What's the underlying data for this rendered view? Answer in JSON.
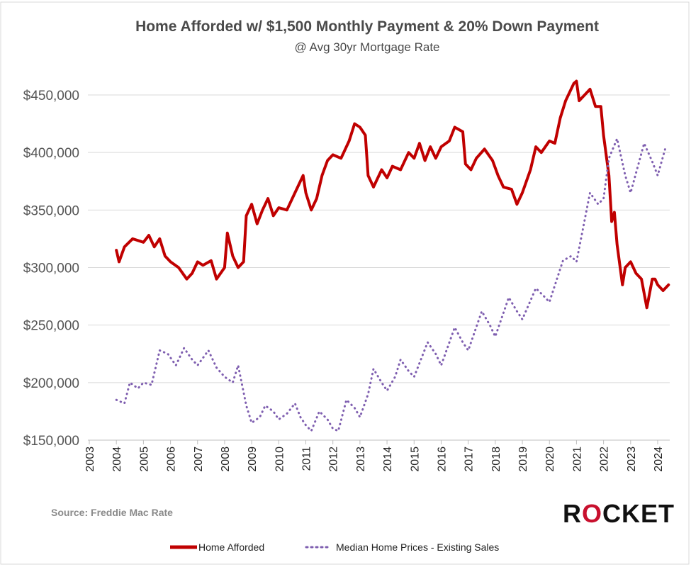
{
  "chart_data": {
    "type": "line",
    "title": "Home Afforded w/ $1,500 Monthly Payment & 20% Down Payment",
    "subtitle": "@ Avg 30yr Mortgage Rate",
    "source": "Source: Freddie Mac Rate",
    "brand": "ROCKET",
    "ylim": [
      150000,
      450000
    ],
    "xlim": [
      2003,
      2024
    ],
    "yticks": [
      150000,
      200000,
      250000,
      300000,
      350000,
      400000,
      450000
    ],
    "ytick_labels": [
      "$150,000",
      "$200,000",
      "$250,000",
      "$300,000",
      "$350,000",
      "$400,000",
      "$450,000"
    ],
    "xtick_labels": [
      "2003",
      "2004",
      "2005",
      "2006",
      "2007",
      "2008",
      "2009",
      "2010",
      "2011",
      "2012",
      "2013",
      "2014",
      "2015",
      "2016",
      "2017",
      "2018",
      "2019",
      "2020",
      "2021",
      "2022",
      "2023",
      "2024"
    ],
    "grid": "horizontal",
    "legend_position": "bottom",
    "series": [
      {
        "name": "Home Afforded",
        "color": "#c00000",
        "style": "solid",
        "x": [
          2004.0,
          2004.1,
          2004.3,
          2004.6,
          2005.0,
          2005.2,
          2005.4,
          2005.6,
          2005.8,
          2006.0,
          2006.3,
          2006.6,
          2006.8,
          2007.0,
          2007.2,
          2007.5,
          2007.7,
          2008.0,
          2008.1,
          2008.3,
          2008.5,
          2008.7,
          2008.8,
          2009.0,
          2009.2,
          2009.4,
          2009.6,
          2009.8,
          2010.0,
          2010.3,
          2010.6,
          2010.9,
          2011.0,
          2011.2,
          2011.4,
          2011.6,
          2011.8,
          2012.0,
          2012.3,
          2012.6,
          2012.8,
          2013.0,
          2013.2,
          2013.3,
          2013.5,
          2013.8,
          2014.0,
          2014.2,
          2014.5,
          2014.8,
          2015.0,
          2015.2,
          2015.4,
          2015.6,
          2015.8,
          2016.0,
          2016.3,
          2016.5,
          2016.8,
          2016.9,
          2017.1,
          2017.3,
          2017.6,
          2017.9,
          2018.1,
          2018.3,
          2018.6,
          2018.8,
          2019.0,
          2019.3,
          2019.5,
          2019.7,
          2020.0,
          2020.2,
          2020.4,
          2020.6,
          2020.9,
          2021.0,
          2021.1,
          2021.3,
          2021.5,
          2021.7,
          2021.9,
          2022.0,
          2022.2,
          2022.3,
          2022.4,
          2022.5,
          2022.7,
          2022.8,
          2023.0,
          2023.2,
          2023.4,
          2023.6,
          2023.8,
          2023.9,
          2024.0,
          2024.2,
          2024.4
        ],
        "y": [
          315000,
          305000,
          318000,
          325000,
          322000,
          328000,
          318000,
          325000,
          310000,
          305000,
          300000,
          290000,
          295000,
          305000,
          302000,
          306000,
          290000,
          300000,
          330000,
          310000,
          300000,
          305000,
          345000,
          355000,
          338000,
          350000,
          360000,
          345000,
          352000,
          350000,
          365000,
          380000,
          365000,
          350000,
          360000,
          380000,
          393000,
          398000,
          395000,
          410000,
          425000,
          422000,
          415000,
          380000,
          370000,
          385000,
          378000,
          388000,
          385000,
          400000,
          395000,
          408000,
          393000,
          405000,
          395000,
          405000,
          410000,
          422000,
          418000,
          390000,
          385000,
          395000,
          403000,
          393000,
          380000,
          370000,
          368000,
          355000,
          365000,
          385000,
          405000,
          400000,
          410000,
          408000,
          430000,
          445000,
          460000,
          462000,
          445000,
          450000,
          455000,
          440000,
          440000,
          415000,
          380000,
          340000,
          348000,
          320000,
          285000,
          300000,
          305000,
          295000,
          290000,
          265000,
          290000,
          290000,
          285000,
          280000,
          285000
        ]
      },
      {
        "name": "Median Home Prices - Existing Sales",
        "color": "#7f5fb0",
        "style": "dotted",
        "x": [
          2004.0,
          2004.3,
          2004.5,
          2004.8,
          2005.0,
          2005.3,
          2005.6,
          2005.9,
          2006.2,
          2006.5,
          2006.8,
          2007.0,
          2007.4,
          2007.7,
          2008.0,
          2008.3,
          2008.5,
          2008.8,
          2009.0,
          2009.3,
          2009.5,
          2009.8,
          2010.0,
          2010.3,
          2010.6,
          2010.8,
          2011.0,
          2011.2,
          2011.5,
          2011.8,
          2012.0,
          2012.2,
          2012.5,
          2012.8,
          2013.0,
          2013.3,
          2013.5,
          2013.8,
          2014.0,
          2014.3,
          2014.5,
          2014.8,
          2015.0,
          2015.5,
          2015.8,
          2016.0,
          2016.5,
          2016.8,
          2017.0,
          2017.5,
          2017.8,
          2018.0,
          2018.5,
          2018.8,
          2019.0,
          2019.5,
          2019.8,
          2020.0,
          2020.5,
          2020.8,
          2021.0,
          2021.5,
          2021.8,
          2022.0,
          2022.2,
          2022.5,
          2022.8,
          2023.0,
          2023.5,
          2023.8,
          2024.0,
          2024.3
        ],
        "y": [
          185000,
          182000,
          200000,
          195000,
          200000,
          198000,
          228000,
          225000,
          215000,
          230000,
          220000,
          215000,
          228000,
          213000,
          205000,
          200000,
          215000,
          180000,
          165000,
          170000,
          180000,
          175000,
          168000,
          173000,
          182000,
          170000,
          163000,
          158000,
          175000,
          168000,
          160000,
          158000,
          185000,
          178000,
          170000,
          190000,
          212000,
          200000,
          193000,
          205000,
          220000,
          210000,
          205000,
          235000,
          225000,
          215000,
          248000,
          235000,
          228000,
          262000,
          250000,
          240000,
          274000,
          262000,
          255000,
          282000,
          275000,
          270000,
          306000,
          310000,
          305000,
          365000,
          355000,
          360000,
          395000,
          412000,
          380000,
          365000,
          408000,
          392000,
          380000,
          405000
        ]
      }
    ]
  }
}
